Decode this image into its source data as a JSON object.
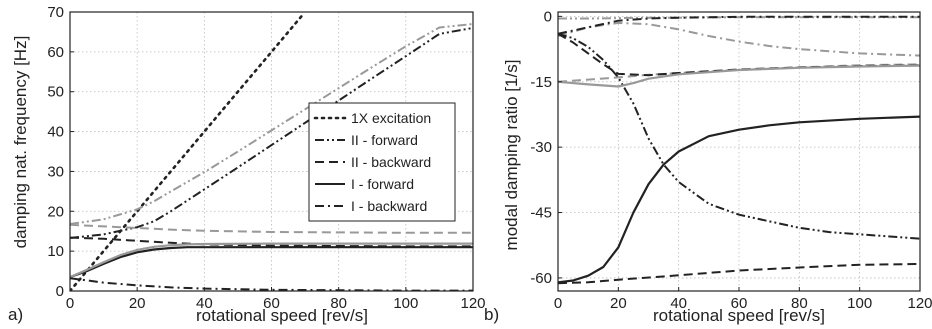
{
  "chart_data": [
    {
      "type": "line",
      "panel_label": "a)",
      "xlabel": "rotational speed [rev/s]",
      "ylabel": "damping nat. frequency [Hz]",
      "xlim": [
        0,
        120
      ],
      "ylim": [
        0,
        70
      ],
      "xticks": [
        0,
        20,
        40,
        60,
        80,
        100,
        120
      ],
      "yticks": [
        0,
        10,
        20,
        30,
        40,
        50,
        60,
        70
      ],
      "grid": true,
      "legend_position": "right-middle",
      "legend": [
        {
          "label": "1X excitation",
          "style": "dot"
        },
        {
          "label": "II - forward",
          "style": "dashdotdot"
        },
        {
          "label": "II - backward",
          "style": "dash"
        },
        {
          "label": "I - forward",
          "style": "solid"
        },
        {
          "label": "I - backward",
          "style": "dashdot"
        }
      ],
      "series": [
        {
          "style": "dot",
          "color": "#222222",
          "x": [
            0,
            10,
            20,
            30,
            40,
            50,
            60,
            69
          ],
          "y": [
            0,
            10,
            20,
            30,
            40,
            50,
            60,
            69
          ]
        },
        {
          "style": "dashdotdot",
          "color": "#222222",
          "x": [
            0,
            10,
            20,
            25,
            30,
            40,
            50,
            60,
            70,
            80,
            90,
            100,
            110,
            120
          ],
          "y": [
            13.3,
            14.2,
            16,
            17.5,
            20,
            25.5,
            31,
            36.6,
            42.2,
            47.8,
            53.4,
            58.9,
            64.5,
            66
          ]
        },
        {
          "style": "dashdotdot",
          "color": "#999999",
          "x": [
            0,
            10,
            20,
            25,
            30,
            40,
            50,
            60,
            70,
            80,
            90,
            100,
            110,
            120
          ],
          "y": [
            16.8,
            18,
            20.5,
            22.5,
            25,
            29.8,
            35,
            40.3,
            45.6,
            50.9,
            56.2,
            61.4,
            66.1,
            67
          ]
        },
        {
          "style": "dash",
          "color": "#222222",
          "x": [
            0,
            10,
            20,
            30,
            40,
            60,
            80,
            100,
            120
          ],
          "y": [
            13.4,
            13.1,
            12.6,
            12.1,
            11.7,
            11.4,
            11.3,
            11.2,
            11.2
          ]
        },
        {
          "style": "dash",
          "color": "#999999",
          "x": [
            0,
            10,
            20,
            30,
            40,
            60,
            80,
            100,
            120
          ],
          "y": [
            16.6,
            16.2,
            15.8,
            15.4,
            15.1,
            14.8,
            14.7,
            14.6,
            14.6
          ]
        },
        {
          "style": "solid",
          "color": "#222222",
          "x": [
            0,
            5,
            10,
            15,
            20,
            25,
            30,
            35,
            40,
            60,
            80,
            100,
            120
          ],
          "y": [
            3.5,
            5,
            6.8,
            8.5,
            9.7,
            10.4,
            10.8,
            11,
            11,
            11,
            11,
            11,
            11
          ]
        },
        {
          "style": "solid",
          "color": "#999999",
          "x": [
            0,
            5,
            10,
            15,
            20,
            25,
            30,
            35,
            40,
            60,
            80,
            100,
            120
          ],
          "y": [
            3.5,
            5.3,
            7.2,
            9,
            10.3,
            11.1,
            11.5,
            11.7,
            11.8,
            11.9,
            11.9,
            11.9,
            11.9
          ]
        },
        {
          "style": "dashdot",
          "color": "#222222",
          "x": [
            0,
            10,
            20,
            30,
            40,
            60,
            80,
            100,
            120
          ],
          "y": [
            3.2,
            2.1,
            1.4,
            0.9,
            0.6,
            0.3,
            0.2,
            0.1,
            0.1
          ]
        }
      ]
    },
    {
      "type": "line",
      "panel_label": "b)",
      "xlabel": "rotational speed [rev/s]",
      "ylabel": "modal damping ratio [1/s]",
      "xlim": [
        0,
        120
      ],
      "ylim": [
        -63,
        1
      ],
      "xticks": [
        0,
        20,
        40,
        60,
        80,
        100,
        120
      ],
      "yticks": [
        0,
        -15,
        -30,
        -45,
        -60
      ],
      "grid": true,
      "series": [
        {
          "style": "dashdotdot",
          "color": "#999999",
          "x": [
            0,
            10,
            20,
            30,
            40,
            60,
            80,
            100,
            120
          ],
          "y": [
            -0.5,
            -0.5,
            -0.4,
            -0.3,
            -0.3,
            -0.2,
            -0.2,
            -0.2,
            -0.2
          ]
        },
        {
          "style": "dashdot",
          "color": "#999999",
          "x": [
            0,
            10,
            20,
            30,
            40,
            50,
            60,
            70,
            80,
            100,
            120
          ],
          "y": [
            -4.5,
            -2.5,
            -1.5,
            -1.8,
            -3,
            -4.5,
            -5.8,
            -6.8,
            -7.5,
            -8.5,
            -9
          ]
        },
        {
          "style": "dashdot",
          "color": "#222222",
          "x": [
            0,
            10,
            20,
            30,
            40,
            60,
            80,
            100,
            120
          ],
          "y": [
            -4,
            -2.5,
            -1,
            -0.5,
            -0.3,
            -0.1,
            -0.1,
            -0.1,
            -0.1
          ]
        },
        {
          "style": "dashdotdot",
          "color": "#222222",
          "x": [
            0,
            5,
            10,
            15,
            20,
            25,
            30,
            35,
            40,
            50,
            60,
            70,
            80,
            90,
            100,
            110,
            120
          ],
          "y": [
            -4,
            -5,
            -7,
            -10,
            -14,
            -20,
            -28,
            -34,
            -38,
            -43,
            -45.5,
            -47,
            -48.5,
            -49.5,
            -50,
            -50.5,
            -51
          ]
        },
        {
          "style": "dash",
          "color": "#999999",
          "x": [
            0,
            10,
            20,
            30,
            40,
            60,
            80,
            100,
            120
          ],
          "y": [
            -15,
            -14.5,
            -14,
            -13.4,
            -13,
            -12.3,
            -11.7,
            -11.2,
            -11
          ]
        },
        {
          "style": "dash",
          "color": "#222222",
          "x": [
            0,
            5,
            10,
            15,
            20,
            30,
            40,
            60,
            80,
            100,
            120
          ],
          "y": [
            -4,
            -6,
            -8.5,
            -11,
            -13.2,
            -13.5,
            -13,
            -12.2,
            -11.7,
            -11.4,
            -11.2
          ]
        },
        {
          "style": "solid",
          "color": "#999999",
          "x": [
            0,
            10,
            20,
            25,
            30,
            40,
            60,
            80,
            100,
            120
          ],
          "y": [
            -15,
            -15.6,
            -16.1,
            -15.3,
            -14.3,
            -13.3,
            -12.3,
            -11.8,
            -11.5,
            -11.3
          ]
        },
        {
          "style": "solid",
          "color": "#222222",
          "x": [
            0,
            5,
            10,
            15,
            20,
            25,
            30,
            35,
            40,
            50,
            60,
            70,
            80,
            100,
            120
          ],
          "y": [
            -61,
            -60.6,
            -59.5,
            -57.5,
            -53,
            -45,
            -38.5,
            -34,
            -31,
            -27.5,
            -26,
            -25,
            -24.3,
            -23.5,
            -23
          ]
        },
        {
          "style": "dash",
          "color": "#222222",
          "x": [
            0,
            10,
            20,
            40,
            60,
            80,
            100,
            120
          ],
          "y": [
            -61.2,
            -61,
            -60.4,
            -59.4,
            -58.3,
            -57.6,
            -57,
            -56.8
          ]
        }
      ]
    }
  ]
}
